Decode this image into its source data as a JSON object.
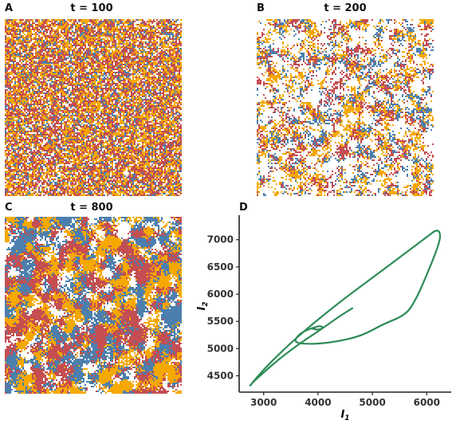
{
  "panels": [
    {
      "letter": "A",
      "title": "t = 100"
    },
    {
      "letter": "B",
      "title": "t = 200"
    },
    {
      "letter": "C",
      "title": "t = 800"
    },
    {
      "letter": "D",
      "title": ""
    }
  ],
  "colors": {
    "red": "#c44e52",
    "orange": "#f5a800",
    "blue": "#4c7fae",
    "empty": "#ffffff",
    "curve": "#2e8b57"
  },
  "chart_data": {
    "type": "line",
    "title": "",
    "xlabel": "I",
    "xlabel_sub": "1",
    "ylabel": "I",
    "ylabel_sub": "2",
    "xlim": [
      2550,
      6450
    ],
    "ylim": [
      4200,
      7450
    ],
    "xticks": [
      "3000",
      "4000",
      "5000",
      "6000"
    ],
    "yticks": [
      "4500",
      "5000",
      "5500",
      "6000",
      "6500",
      "7000"
    ],
    "series": [
      {
        "x": [
          4630,
          4400,
          4100,
          3700,
          3300,
          3000,
          2780,
          2740,
          2830,
          3100,
          3600,
          4300,
          5000,
          5600,
          6000,
          6200,
          6260,
          6200,
          6000,
          5800,
          5620,
          5200,
          4800,
          4300,
          3900,
          3600,
          3580,
          3700,
          3900,
          4050,
          4100,
          4000,
          3850,
          3950
        ],
        "y": [
          5740,
          5600,
          5380,
          5120,
          4820,
          4560,
          4360,
          4300,
          4420,
          4720,
          5200,
          5780,
          6300,
          6750,
          7050,
          7200,
          7080,
          6850,
          6350,
          5900,
          5620,
          5450,
          5230,
          5120,
          5080,
          5100,
          5180,
          5300,
          5380,
          5420,
          5380,
          5340,
          5380,
          5360
        ]
      }
    ]
  }
}
